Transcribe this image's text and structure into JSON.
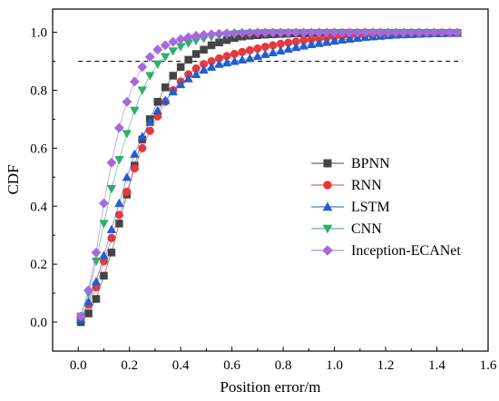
{
  "chart_data": {
    "type": "line",
    "xlabel": "Position error/m",
    "ylabel": "CDF",
    "xlim": [
      -0.1,
      1.6
    ],
    "ylim": [
      -0.1,
      1.08
    ],
    "xticks": [
      0.0,
      0.2,
      0.4,
      0.6,
      0.8,
      1.0,
      1.2,
      1.4,
      1.6
    ],
    "yticks": [
      0.0,
      0.2,
      0.4,
      0.6,
      0.8,
      1.0
    ],
    "xtick_labels": [
      "0.0",
      "0.2",
      "0.4",
      "0.6",
      "0.8",
      "1.0",
      "1.2",
      "1.4",
      "1.6"
    ],
    "ytick_labels": [
      "0.0",
      "0.2",
      "0.4",
      "0.6",
      "0.8",
      "1.0"
    ],
    "reference_line": {
      "y": 0.9,
      "x_range": [
        0.0,
        1.5
      ],
      "style": "dashed"
    },
    "grid": false,
    "legend_position": "center-right",
    "x": [
      0.01,
      0.04,
      0.07,
      0.1,
      0.13,
      0.16,
      0.19,
      0.22,
      0.25,
      0.28,
      0.31,
      0.34,
      0.37,
      0.4,
      0.43,
      0.46,
      0.49,
      0.52,
      0.55,
      0.58,
      0.61,
      0.64,
      0.67,
      0.7,
      0.73,
      0.76,
      0.79,
      0.82,
      0.85,
      0.88,
      0.91,
      0.94,
      0.97,
      1.0,
      1.03,
      1.06,
      1.09,
      1.12,
      1.15,
      1.18,
      1.21,
      1.24,
      1.27,
      1.3,
      1.33,
      1.36,
      1.39,
      1.42,
      1.45,
      1.48
    ],
    "series": [
      {
        "name": "BPNN",
        "color": "#444444",
        "marker": "square",
        "values": [
          0.0,
          0.03,
          0.08,
          0.16,
          0.24,
          0.34,
          0.44,
          0.54,
          0.63,
          0.7,
          0.76,
          0.81,
          0.85,
          0.88,
          0.905,
          0.925,
          0.94,
          0.955,
          0.965,
          0.973,
          0.98,
          0.985,
          0.988,
          0.99,
          0.992,
          0.993,
          0.994,
          0.995,
          0.996,
          0.996,
          0.997,
          0.997,
          0.997,
          0.998,
          0.998,
          0.998,
          0.998,
          0.998,
          0.998,
          0.998,
          0.998,
          0.998,
          0.998,
          0.998,
          0.998,
          0.998,
          0.998,
          0.998,
          0.998,
          0.998
        ]
      },
      {
        "name": "RNN",
        "color": "#e8383d",
        "marker": "circle",
        "values": [
          0.01,
          0.06,
          0.12,
          0.21,
          0.29,
          0.37,
          0.45,
          0.53,
          0.6,
          0.66,
          0.71,
          0.76,
          0.8,
          0.83,
          0.855,
          0.875,
          0.89,
          0.9,
          0.91,
          0.918,
          0.925,
          0.932,
          0.938,
          0.944,
          0.95,
          0.955,
          0.96,
          0.964,
          0.968,
          0.972,
          0.975,
          0.978,
          0.981,
          0.984,
          0.986,
          0.988,
          0.99,
          0.991,
          0.992,
          0.993,
          0.994,
          0.995,
          0.995,
          0.996,
          0.996,
          0.997,
          0.997,
          0.997,
          0.997,
          0.997
        ]
      },
      {
        "name": "LSTM",
        "color": "#1f5fd1",
        "marker": "triangle-up",
        "values": [
          0.01,
          0.07,
          0.14,
          0.23,
          0.32,
          0.41,
          0.5,
          0.58,
          0.64,
          0.69,
          0.73,
          0.765,
          0.795,
          0.82,
          0.84,
          0.855,
          0.87,
          0.88,
          0.89,
          0.895,
          0.9,
          0.905,
          0.91,
          0.917,
          0.924,
          0.93,
          0.936,
          0.942,
          0.948,
          0.953,
          0.958,
          0.962,
          0.966,
          0.97,
          0.974,
          0.977,
          0.98,
          0.983,
          0.985,
          0.987,
          0.989,
          0.991,
          0.992,
          0.993,
          0.994,
          0.995,
          0.996,
          0.996,
          0.997,
          0.997
        ]
      },
      {
        "name": "CNN",
        "color": "#2fae6e",
        "marker": "triangle-down",
        "values": [
          0.02,
          0.1,
          0.21,
          0.34,
          0.46,
          0.56,
          0.65,
          0.73,
          0.8,
          0.85,
          0.89,
          0.915,
          0.935,
          0.95,
          0.962,
          0.971,
          0.978,
          0.984,
          0.988,
          0.991,
          0.993,
          0.995,
          0.996,
          0.997,
          0.998,
          0.998,
          0.998,
          0.998,
          0.998,
          0.998,
          0.998,
          0.998,
          0.998,
          0.998,
          0.998,
          0.998,
          0.998,
          0.998,
          0.998,
          0.998,
          0.998,
          0.998,
          0.998,
          0.998,
          0.998,
          0.998,
          0.998,
          0.998,
          0.998,
          0.998
        ]
      },
      {
        "name": "Inception-ECANet",
        "color": "#a569db",
        "marker": "diamond",
        "values": [
          0.02,
          0.11,
          0.24,
          0.41,
          0.55,
          0.67,
          0.76,
          0.83,
          0.88,
          0.915,
          0.94,
          0.955,
          0.967,
          0.976,
          0.983,
          0.988,
          0.991,
          0.993,
          0.995,
          0.996,
          0.997,
          0.998,
          0.998,
          0.999,
          0.999,
          0.999,
          0.999,
          0.999,
          0.999,
          0.999,
          0.999,
          0.999,
          0.999,
          0.999,
          0.999,
          0.999,
          0.999,
          0.999,
          0.999,
          0.999,
          0.999,
          0.999,
          0.999,
          0.999,
          0.999,
          0.999,
          0.999,
          0.999,
          0.999,
          0.999
        ]
      }
    ]
  }
}
